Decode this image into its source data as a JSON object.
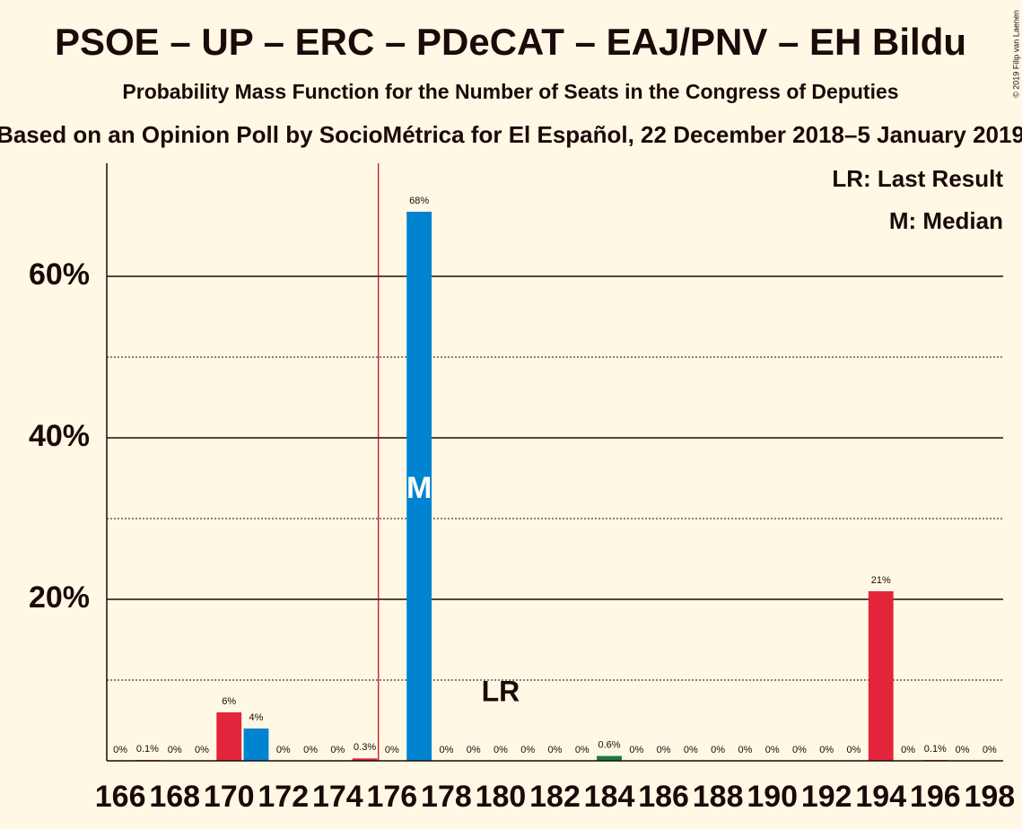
{
  "chart_data": {
    "type": "bar",
    "title": "PSOE – UP – ERC – PDeCAT – EAJ/PNV – EH Bildu",
    "subtitle": "Probability Mass Function for the Number of Seats in the Congress of Deputies",
    "source": "Based on an Opinion Poll by SocioMétrica for El Español, 22 December 2018–5 January 2019",
    "copyright": "© 2019 Filip van Laenen",
    "categories": [
      "166",
      null,
      "168",
      null,
      "170",
      null,
      "172",
      null,
      "174",
      null,
      "176",
      null,
      "178",
      null,
      "180",
      null,
      "182",
      null,
      "184",
      null,
      "186",
      null,
      "188",
      null,
      "190",
      null,
      "192",
      null,
      "194",
      null,
      "196",
      null,
      "198"
    ],
    "values": [
      0,
      0.1,
      0,
      0,
      6,
      4,
      0,
      0,
      0,
      0.3,
      0,
      68,
      0,
      0,
      0,
      0,
      0,
      0,
      0.6,
      0,
      0,
      0,
      0,
      0,
      0,
      0,
      0,
      0,
      21,
      0,
      0.1,
      0,
      0
    ],
    "value_labels": [
      "0%",
      "0.1%",
      "0%",
      "0%",
      "6%",
      "4%",
      "0%",
      "0%",
      "0%",
      "0.3%",
      "0%",
      "68%",
      "0%",
      "0%",
      "0%",
      "0%",
      "0%",
      "0%",
      "0.6%",
      "0%",
      "0%",
      "0%",
      "0%",
      "0%",
      "0%",
      "0%",
      "0%",
      "0%",
      "21%",
      "0%",
      "0.1%",
      "0%",
      "0%"
    ],
    "colors": [
      "#e3253c",
      "#e3253c",
      "#e3253c",
      "#e3253c",
      "#e3253c",
      "#0084d1",
      "#0084d1",
      "#0084d1",
      "#e3253c",
      "#e3253c",
      "#0084d1",
      "#0084d1",
      "#0084d1",
      "#0084d1",
      "#0084d1",
      "#0084d1",
      "#0084d1",
      "#1a7a3a",
      "#1a7a3a",
      "#1a7a3a",
      "#1a7a3a",
      "#1a7a3a",
      "#e3253c",
      "#e3253c",
      "#e3253c",
      "#e3253c",
      "#e3253c",
      "#e3253c",
      "#e3253c",
      "#e3253c",
      "#e3253c",
      "#e3253c",
      "#e3253c"
    ],
    "ylim": [
      0,
      74
    ],
    "yticks": [
      {
        "value": 20,
        "label": "20%"
      },
      {
        "value": 40,
        "label": "40%"
      },
      {
        "value": 60,
        "label": "60%"
      }
    ],
    "minor_yticks": [
      10,
      30,
      50
    ],
    "grid": true,
    "majority_seat": "176",
    "median_seat": "177",
    "median_label": "M",
    "last_result_seat": "180",
    "last_result_label": "LR",
    "legend": [
      "LR: Last Result",
      "M: Median"
    ]
  }
}
